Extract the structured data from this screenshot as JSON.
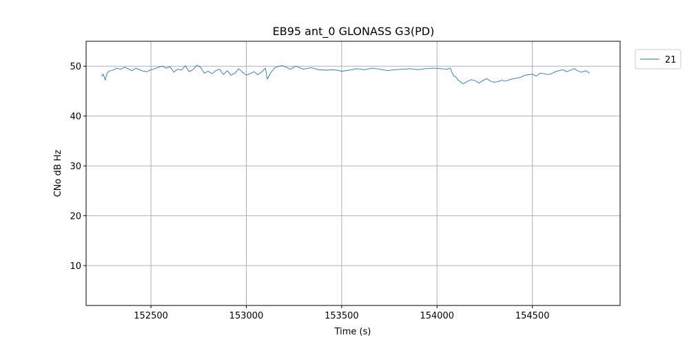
{
  "chart_data": {
    "type": "line",
    "title": "EB95 ant_0 GLONASS G3(PD)",
    "xlabel": "Time (s)",
    "ylabel": "CNo dB Hz",
    "xlim": [
      152160,
      154960
    ],
    "ylim": [
      2,
      55
    ],
    "xticks": [
      152500,
      153000,
      153500,
      154000,
      154500
    ],
    "yticks": [
      10,
      20,
      30,
      40,
      50
    ],
    "grid": true,
    "legend_position": "outside-top-right",
    "colors": {
      "series": "#1f77b4",
      "grid": "#b0b0b0"
    },
    "series": [
      {
        "name": "21",
        "x": [
          152240,
          152250,
          152260,
          152270,
          152280,
          152300,
          152320,
          152340,
          152360,
          152380,
          152400,
          152420,
          152440,
          152460,
          152480,
          152500,
          152520,
          152540,
          152560,
          152580,
          152600,
          152620,
          152640,
          152660,
          152680,
          152700,
          152720,
          152740,
          152760,
          152780,
          152800,
          152820,
          152840,
          152860,
          152880,
          152900,
          152920,
          152940,
          152960,
          152980,
          153000,
          153020,
          153040,
          153060,
          153080,
          153100,
          153110,
          153130,
          153150,
          153170,
          153190,
          153210,
          153230,
          153260,
          153300,
          153340,
          153380,
          153420,
          153460,
          153500,
          153540,
          153580,
          153620,
          153660,
          153700,
          153740,
          153780,
          153820,
          153860,
          153900,
          153940,
          153980,
          154020,
          154050,
          154070,
          154080,
          154090,
          154100,
          154110,
          154120,
          154130,
          154140,
          154160,
          154180,
          154200,
          154220,
          154240,
          154260,
          154280,
          154300,
          154320,
          154340,
          154360,
          154380,
          154400,
          154420,
          154440,
          154460,
          154480,
          154500,
          154520,
          154540,
          154560,
          154580,
          154600,
          154620,
          154640,
          154660,
          154680,
          154700,
          154720,
          154740,
          154760,
          154780,
          154800
        ],
        "y": [
          48.0,
          48.4,
          47.2,
          48.6,
          49.0,
          49.2,
          49.6,
          49.4,
          49.8,
          49.5,
          49.1,
          49.6,
          49.3,
          49.0,
          48.9,
          49.3,
          49.5,
          49.8,
          50.0,
          49.6,
          49.9,
          48.8,
          49.4,
          49.2,
          50.1,
          48.9,
          49.3,
          50.2,
          49.8,
          48.6,
          49.0,
          48.5,
          49.1,
          49.4,
          48.3,
          49.1,
          48.2,
          48.6,
          49.5,
          48.8,
          48.2,
          48.5,
          48.9,
          48.3,
          48.8,
          49.6,
          47.4,
          48.8,
          49.7,
          50.0,
          50.1,
          49.8,
          49.4,
          50.0,
          49.4,
          49.7,
          49.3,
          49.2,
          49.3,
          49.0,
          49.2,
          49.5,
          49.3,
          49.6,
          49.4,
          49.1,
          49.3,
          49.4,
          49.5,
          49.3,
          49.5,
          49.6,
          49.5,
          49.4,
          49.6,
          48.6,
          48.0,
          47.8,
          47.2,
          47.0,
          46.6,
          46.5,
          47.0,
          47.3,
          47.1,
          46.6,
          47.1,
          47.5,
          47.0,
          46.8,
          46.9,
          47.2,
          47.0,
          47.3,
          47.5,
          47.6,
          47.8,
          48.2,
          48.3,
          48.4,
          48.0,
          48.6,
          48.5,
          48.3,
          48.5,
          48.9,
          49.1,
          49.3,
          48.9,
          49.2,
          49.5,
          49.0,
          48.8,
          49.1,
          48.6
        ]
      }
    ]
  }
}
